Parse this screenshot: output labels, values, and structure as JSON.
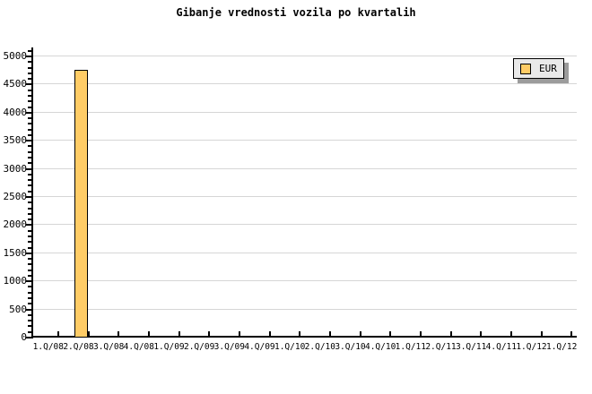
{
  "title": "Gibanje vrednosti vozila po kvartalih",
  "legend": {
    "position": "top-right",
    "items": [
      {
        "label": "EUR",
        "swatch_color": "#FFCC66"
      }
    ]
  },
  "chart_data": {
    "type": "bar",
    "title": "Gibanje vrednosti vozila po kvartalih",
    "xlabel": "",
    "ylabel": "",
    "categories": [
      "1.Q/08",
      "2.Q/08",
      "3.Q/08",
      "4.Q/08",
      "1.Q/09",
      "2.Q/09",
      "3.Q/09",
      "4.Q/09",
      "1.Q/10",
      "2.Q/10",
      "3.Q/10",
      "4.Q/10",
      "1.Q/11",
      "2.Q/11",
      "3.Q/11",
      "4.Q/11",
      "1.Q/12",
      "1.Q/12"
    ],
    "series": [
      {
        "name": "EUR",
        "values": [
          null,
          4750,
          null,
          null,
          null,
          null,
          null,
          null,
          null,
          null,
          null,
          null,
          null,
          null,
          null,
          null,
          null,
          null
        ]
      }
    ],
    "ylim": [
      0,
      5000
    ],
    "ytick_major": 500,
    "ytick_minor": 100,
    "ytick_labels": [
      "0",
      "500",
      "1000",
      "1500",
      "2000",
      "2500",
      "3000",
      "3500",
      "4000",
      "4500",
      "5000"
    ],
    "grid": "horizontal-on",
    "legend_position": "top-right",
    "bar_color": "#FFCC66",
    "bar_border_color": "#000000",
    "grid_color": "#D6D6D6",
    "axis_color": "#000000",
    "background_color": "#FFFFFF",
    "legend_background": "#E9E9E9",
    "legend_shadow": "#9C9C9C"
  }
}
